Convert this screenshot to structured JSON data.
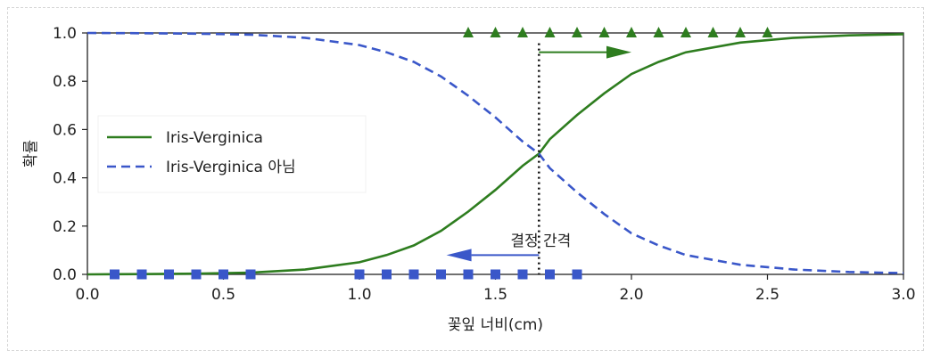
{
  "chart_data": {
    "type": "line",
    "xlabel": "꽃잎 너비(cm)",
    "ylabel": "확률",
    "xlim": [
      0.0,
      3.0
    ],
    "ylim": [
      0.0,
      1.0
    ],
    "x_ticks": [
      "0.0",
      "0.5",
      "1.0",
      "1.5",
      "2.0",
      "2.5",
      "3.0"
    ],
    "y_ticks": [
      "0.0",
      "0.2",
      "0.4",
      "0.6",
      "0.8",
      "1.0"
    ],
    "grid": false,
    "legend_position": "center-left",
    "series": [
      {
        "name": "Iris-Verginica",
        "style": "solid",
        "color": "#2e7d1f",
        "x": [
          0.0,
          0.2,
          0.4,
          0.6,
          0.8,
          1.0,
          1.1,
          1.2,
          1.3,
          1.4,
          1.5,
          1.6,
          1.66,
          1.7,
          1.8,
          1.9,
          2.0,
          2.1,
          2.2,
          2.4,
          2.6,
          2.8,
          3.0
        ],
        "y": [
          0.0,
          0.001,
          0.003,
          0.007,
          0.02,
          0.05,
          0.08,
          0.12,
          0.18,
          0.26,
          0.35,
          0.45,
          0.5,
          0.56,
          0.66,
          0.75,
          0.83,
          0.88,
          0.92,
          0.96,
          0.98,
          0.99,
          0.995
        ]
      },
      {
        "name": "Iris-Verginica 아님",
        "style": "dashed",
        "color": "#3a57c9",
        "x": [
          0.0,
          0.2,
          0.4,
          0.6,
          0.8,
          1.0,
          1.1,
          1.2,
          1.3,
          1.4,
          1.5,
          1.6,
          1.66,
          1.7,
          1.8,
          1.9,
          2.0,
          2.1,
          2.2,
          2.4,
          2.6,
          2.8,
          3.0
        ],
        "y": [
          1.0,
          0.999,
          0.997,
          0.993,
          0.98,
          0.95,
          0.92,
          0.88,
          0.82,
          0.74,
          0.65,
          0.55,
          0.5,
          0.44,
          0.34,
          0.25,
          0.17,
          0.12,
          0.08,
          0.04,
          0.02,
          0.01,
          0.005
        ]
      }
    ],
    "markers": [
      {
        "shape": "triangle",
        "color": "#2e7d1f",
        "x": [
          1.4,
          1.5,
          1.6,
          1.7,
          1.8,
          1.9,
          2.0,
          2.1,
          2.2,
          2.3,
          2.4,
          2.5
        ],
        "y": [
          1,
          1,
          1,
          1,
          1,
          1,
          1,
          1,
          1,
          1,
          1,
          1
        ]
      },
      {
        "shape": "square",
        "color": "#3a57c9",
        "x": [
          0.1,
          0.2,
          0.3,
          0.4,
          0.5,
          0.6,
          1.0,
          1.1,
          1.2,
          1.3,
          1.4,
          1.5,
          1.6,
          1.7,
          1.8
        ],
        "y": [
          0,
          0,
          0,
          0,
          0,
          0,
          0,
          0,
          0,
          0,
          0,
          0,
          0,
          0,
          0
        ]
      }
    ],
    "decision_boundary": {
      "x": 1.66,
      "label": "결정 간격"
    },
    "arrows": [
      {
        "from": [
          1.66,
          0.92
        ],
        "to": [
          2.0,
          0.92
        ],
        "color": "#2e7d1f"
      },
      {
        "from": [
          1.66,
          0.08
        ],
        "to": [
          1.32,
          0.08
        ],
        "color": "#3a57c9"
      }
    ]
  }
}
